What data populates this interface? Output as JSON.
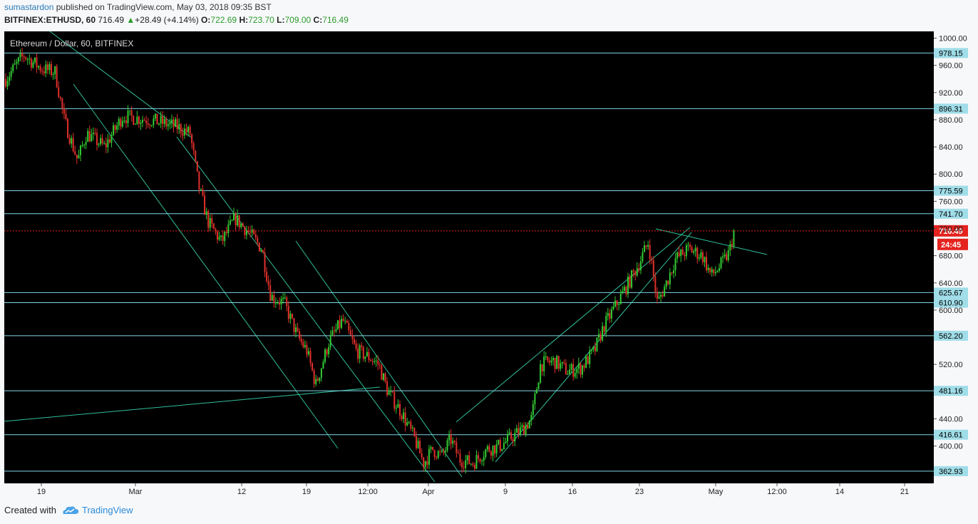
{
  "header": {
    "author": "sumastardon",
    "published_text": "published on TradingView.com, May 03, 2018 09:35 BST",
    "symbol": "BITFINEX:ETHUSD, 60",
    "last": "716.49",
    "change": "+28.49 (+4.14%)",
    "o_label": "O:",
    "o_value": "722.69",
    "h_label": "H:",
    "h_value": "723.70",
    "l_label": "L:",
    "l_value": "709.00",
    "c_label": "C:",
    "c_value": "716.49"
  },
  "footer": {
    "created_with": "Created with",
    "brand": "TradingView"
  },
  "colors": {
    "background": "#000000",
    "hline": "#7fd6e6",
    "trend": "#2fbf9a",
    "up": "#33cc33",
    "down": "#e0302a",
    "price_tag": "#e5231f",
    "label_bg": "#9fdde8"
  },
  "chart_data": {
    "type": "candlestick",
    "title": "Ethereum / Dollar, 60, BITFINEX",
    "ylim": [
      345,
      1010
    ],
    "y_ticks": [
      "1000.00",
      "960.00",
      "920.00",
      "880.00",
      "840.00",
      "800.00",
      "760.00",
      "720.00",
      "680.00",
      "640.00",
      "600.00",
      "560.00",
      "520.00",
      "480.00",
      "440.00",
      "400.00"
    ],
    "x_ticks": [
      "19",
      "Mar",
      "12",
      "19",
      "12:00",
      "Apr",
      "9",
      "16",
      "23",
      "May",
      "12:00",
      "14",
      "21"
    ],
    "horizontal_levels": [
      978.15,
      896.31,
      775.59,
      741.7,
      625.67,
      610.9,
      562.2,
      481.16,
      416.61,
      362.93
    ],
    "horizontal_labels": [
      "978.15",
      "896.31",
      "775.59",
      "741.70",
      "625.67",
      "610.90",
      "562.20",
      "481.16",
      "416.61",
      "362.93"
    ],
    "last_price": 716.49,
    "last_price_label": "716.49",
    "countdown": "24:45",
    "price_path": [
      [
        0,
        940
      ],
      [
        0.02,
        975
      ],
      [
        0.04,
        955
      ],
      [
        0.055,
        950
      ],
      [
        0.065,
        880
      ],
      [
        0.08,
        820
      ],
      [
        0.09,
        860
      ],
      [
        0.11,
        840
      ],
      [
        0.13,
        885
      ],
      [
        0.16,
        880
      ],
      [
        0.19,
        870
      ],
      [
        0.205,
        860
      ],
      [
        0.215,
        780
      ],
      [
        0.225,
        730
      ],
      [
        0.24,
        700
      ],
      [
        0.255,
        735
      ],
      [
        0.27,
        715
      ],
      [
        0.285,
        690
      ],
      [
        0.295,
        620
      ],
      [
        0.31,
        610
      ],
      [
        0.325,
        560
      ],
      [
        0.335,
        540
      ],
      [
        0.345,
        490
      ],
      [
        0.36,
        555
      ],
      [
        0.375,
        585
      ],
      [
        0.39,
        540
      ],
      [
        0.405,
        530
      ],
      [
        0.415,
        520
      ],
      [
        0.425,
        480
      ],
      [
        0.44,
        450
      ],
      [
        0.455,
        410
      ],
      [
        0.465,
        375
      ],
      [
        0.475,
        395
      ],
      [
        0.485,
        385
      ],
      [
        0.495,
        410
      ],
      [
        0.505,
        380
      ],
      [
        0.52,
        375
      ],
      [
        0.535,
        395
      ],
      [
        0.55,
        400
      ],
      [
        0.565,
        415
      ],
      [
        0.575,
        425
      ],
      [
        0.585,
        440
      ],
      [
        0.595,
        520
      ],
      [
        0.61,
        525
      ],
      [
        0.625,
        510
      ],
      [
        0.64,
        515
      ],
      [
        0.655,
        540
      ],
      [
        0.665,
        575
      ],
      [
        0.68,
        610
      ],
      [
        0.695,
        645
      ],
      [
        0.705,
        670
      ],
      [
        0.715,
        700
      ],
      [
        0.725,
        610
      ],
      [
        0.735,
        640
      ],
      [
        0.745,
        675
      ],
      [
        0.76,
        690
      ],
      [
        0.775,
        680
      ],
      [
        0.785,
        650
      ],
      [
        0.795,
        665
      ],
      [
        0.805,
        685
      ],
      [
        0.81,
        716
      ]
    ]
  }
}
